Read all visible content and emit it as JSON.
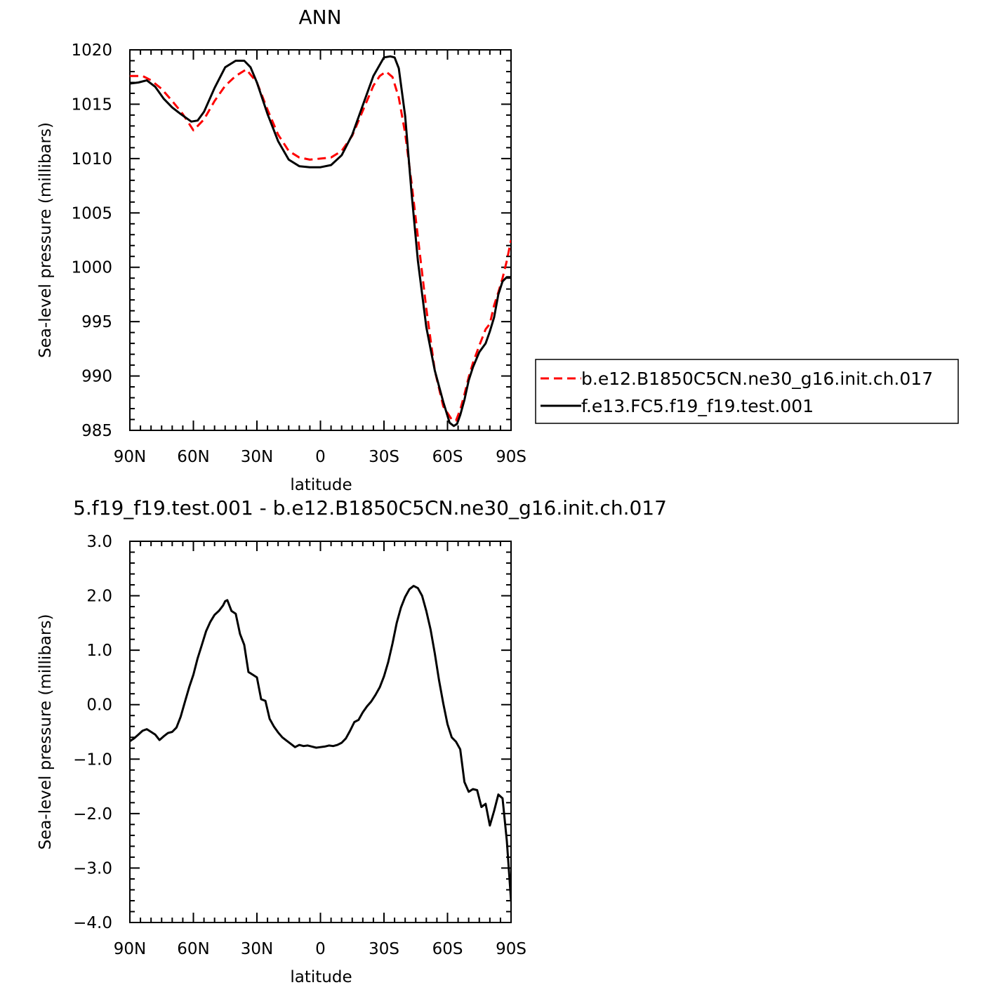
{
  "chart_data": [
    {
      "type": "line",
      "title": "ANN",
      "xlabel": "latitude",
      "ylabel": "Sea-level pressure (millibars)",
      "xlim": [
        90,
        -90
      ],
      "ylim": [
        985,
        1020
      ],
      "xticks": [
        {
          "value": 90,
          "label": "90N"
        },
        {
          "value": 60,
          "label": "60N"
        },
        {
          "value": 30,
          "label": "30N"
        },
        {
          "value": 0,
          "label": "0"
        },
        {
          "value": -30,
          "label": "30S"
        },
        {
          "value": -60,
          "label": "60S"
        },
        {
          "value": -90,
          "label": "90S"
        }
      ],
      "yticks": [
        {
          "value": 1020,
          "label": "1020"
        },
        {
          "value": 1015,
          "label": "1015"
        },
        {
          "value": 1010,
          "label": "1010"
        },
        {
          "value": 1005,
          "label": "1005"
        },
        {
          "value": 1000,
          "label": "1000"
        },
        {
          "value": 995,
          "label": "995"
        },
        {
          "value": 990,
          "label": "990"
        },
        {
          "value": 985,
          "label": "985"
        }
      ],
      "legend_position": "right",
      "series": [
        {
          "name": "b.e12.B1850C5CN.ne30_g16.init.ch.017",
          "color": "#ff0000",
          "dash": "dashed",
          "x": [
            90,
            84,
            80,
            75,
            70,
            65,
            60,
            55,
            50,
            45,
            40,
            35,
            30,
            25,
            20,
            15,
            10,
            5,
            0,
            -5,
            -10,
            -15,
            -20,
            -25,
            -28,
            -31,
            -34,
            -37,
            -40,
            -43,
            -46,
            -50,
            -54,
            -58,
            -62,
            -64,
            -66,
            -68,
            -70,
            -72,
            -75,
            -78,
            -80,
            -82,
            -84,
            -86,
            -88,
            -90
          ],
          "y": [
            1017.6,
            1017.6,
            1017.2,
            1016.4,
            1015.3,
            1014.1,
            1012.6,
            1013.6,
            1015.3,
            1016.7,
            1017.6,
            1018.2,
            1017.0,
            1014.5,
            1012.2,
            1010.7,
            1010.1,
            1009.9,
            1010.0,
            1010.1,
            1010.7,
            1012.1,
            1014.4,
            1016.7,
            1017.6,
            1018.0,
            1017.5,
            1015.6,
            1012.3,
            1007.8,
            1002.8,
            996.2,
            990.5,
            987.2,
            986.0,
            985.9,
            986.9,
            988.3,
            989.9,
            991.2,
            992.8,
            994.3,
            994.8,
            996.5,
            997.7,
            999.0,
            1000.6,
            1002.5
          ]
        },
        {
          "name": "f.e13.FC5.f19_f19.test.001",
          "color": "#000000",
          "dash": "solid",
          "x": [
            90,
            86,
            82,
            78,
            74,
            70,
            66,
            61,
            58,
            55,
            50,
            45,
            40,
            36,
            33,
            30,
            25,
            20,
            15,
            10,
            5,
            0,
            -5,
            -10,
            -15,
            -20,
            -25,
            -30,
            -33,
            -35,
            -37,
            -40,
            -43,
            -46,
            -50,
            -54,
            -58,
            -61,
            -63,
            -64.5,
            -66,
            -68,
            -70,
            -72,
            -75,
            -78,
            -80,
            -82,
            -84,
            -86,
            -88,
            -90
          ],
          "y": [
            1016.9,
            1017.0,
            1017.2,
            1016.6,
            1015.5,
            1014.7,
            1014.1,
            1013.4,
            1013.5,
            1014.3,
            1016.5,
            1018.4,
            1019.0,
            1019.0,
            1018.4,
            1017.0,
            1014.1,
            1011.6,
            1009.9,
            1009.3,
            1009.2,
            1009.2,
            1009.4,
            1010.3,
            1012.2,
            1014.9,
            1017.6,
            1019.3,
            1019.4,
            1019.3,
            1018.3,
            1013.9,
            1006.9,
            1000.6,
            994.5,
            990.5,
            987.6,
            985.7,
            985.4,
            985.6,
            986.4,
            987.8,
            989.6,
            990.8,
            992.2,
            993.0,
            994.1,
            995.4,
            997.5,
            998.7,
            999.1,
            999.1
          ]
        }
      ]
    },
    {
      "type": "line",
      "title": "5.f19_f19.test.001 - b.e12.B1850C5CN.ne30_g16.init.ch.017",
      "xlabel": "latitude",
      "ylabel": "Sea-level pressure (millibars)",
      "xlim": [
        90,
        -90
      ],
      "ylim": [
        -4.0,
        3.0
      ],
      "xticks": [
        {
          "value": 90,
          "label": "90N"
        },
        {
          "value": 60,
          "label": "60N"
        },
        {
          "value": 30,
          "label": "30N"
        },
        {
          "value": 0,
          "label": "0"
        },
        {
          "value": -30,
          "label": "30S"
        },
        {
          "value": -60,
          "label": "60S"
        },
        {
          "value": -90,
          "label": "90S"
        }
      ],
      "yticks": [
        {
          "value": 3.0,
          "label": "3.0"
        },
        {
          "value": 2.0,
          "label": "2.0"
        },
        {
          "value": 1.0,
          "label": "1.0"
        },
        {
          "value": 0.0,
          "label": "0.0"
        },
        {
          "value": -1.0,
          "label": "−1.0"
        },
        {
          "value": -2.0,
          "label": "−2.0"
        },
        {
          "value": -3.0,
          "label": "−3.0"
        },
        {
          "value": -4.0,
          "label": "−4.0"
        }
      ],
      "series": [
        {
          "color": "#000000",
          "dash": "solid",
          "x": [
            90,
            88,
            86,
            84,
            82,
            80,
            78,
            76,
            74,
            72,
            70,
            68,
            66,
            64,
            62,
            60,
            58,
            56,
            54,
            52,
            50,
            48,
            46,
            45,
            44,
            42,
            40,
            38,
            36,
            34,
            32,
            30,
            28,
            26,
            24,
            22,
            20,
            18,
            16,
            14,
            12,
            10,
            8,
            6,
            4,
            2,
            0,
            -2,
            -4,
            -6,
            -8,
            -10,
            -12,
            -14,
            -16,
            -18,
            -20,
            -22,
            -24,
            -26,
            -28,
            -30,
            -32,
            -34,
            -36,
            -38,
            -40,
            -42,
            -44,
            -46,
            -48,
            -50,
            -52,
            -54,
            -56,
            -58,
            -60,
            -62,
            -64,
            -66,
            -67,
            -68,
            -70,
            -72,
            -74,
            -76,
            -78,
            -80,
            -82,
            -84,
            -86,
            -88,
            -90
          ],
          "y": [
            -0.67,
            -0.62,
            -0.55,
            -0.48,
            -0.45,
            -0.5,
            -0.55,
            -0.65,
            -0.58,
            -0.52,
            -0.5,
            -0.42,
            -0.22,
            0.05,
            0.32,
            0.55,
            0.85,
            1.1,
            1.35,
            1.52,
            1.65,
            1.72,
            1.82,
            1.9,
            1.92,
            1.72,
            1.67,
            1.3,
            1.1,
            0.6,
            0.55,
            0.5,
            0.1,
            0.07,
            -0.26,
            -0.4,
            -0.51,
            -0.6,
            -0.66,
            -0.72,
            -0.78,
            -0.74,
            -0.76,
            -0.75,
            -0.77,
            -0.79,
            -0.78,
            -0.77,
            -0.75,
            -0.76,
            -0.74,
            -0.7,
            -0.62,
            -0.48,
            -0.32,
            -0.28,
            -0.14,
            -0.03,
            0.06,
            0.18,
            0.32,
            0.52,
            0.78,
            1.12,
            1.5,
            1.78,
            1.98,
            2.12,
            2.18,
            2.14,
            2.0,
            1.72,
            1.38,
            0.94,
            0.45,
            0.02,
            -0.36,
            -0.6,
            -0.68,
            -0.82,
            -1.12,
            -1.42,
            -1.6,
            -1.55,
            -1.57,
            -1.88,
            -1.82,
            -2.22,
            -1.95,
            -1.65,
            -1.72,
            -2.5,
            -3.6
          ]
        }
      ]
    }
  ]
}
